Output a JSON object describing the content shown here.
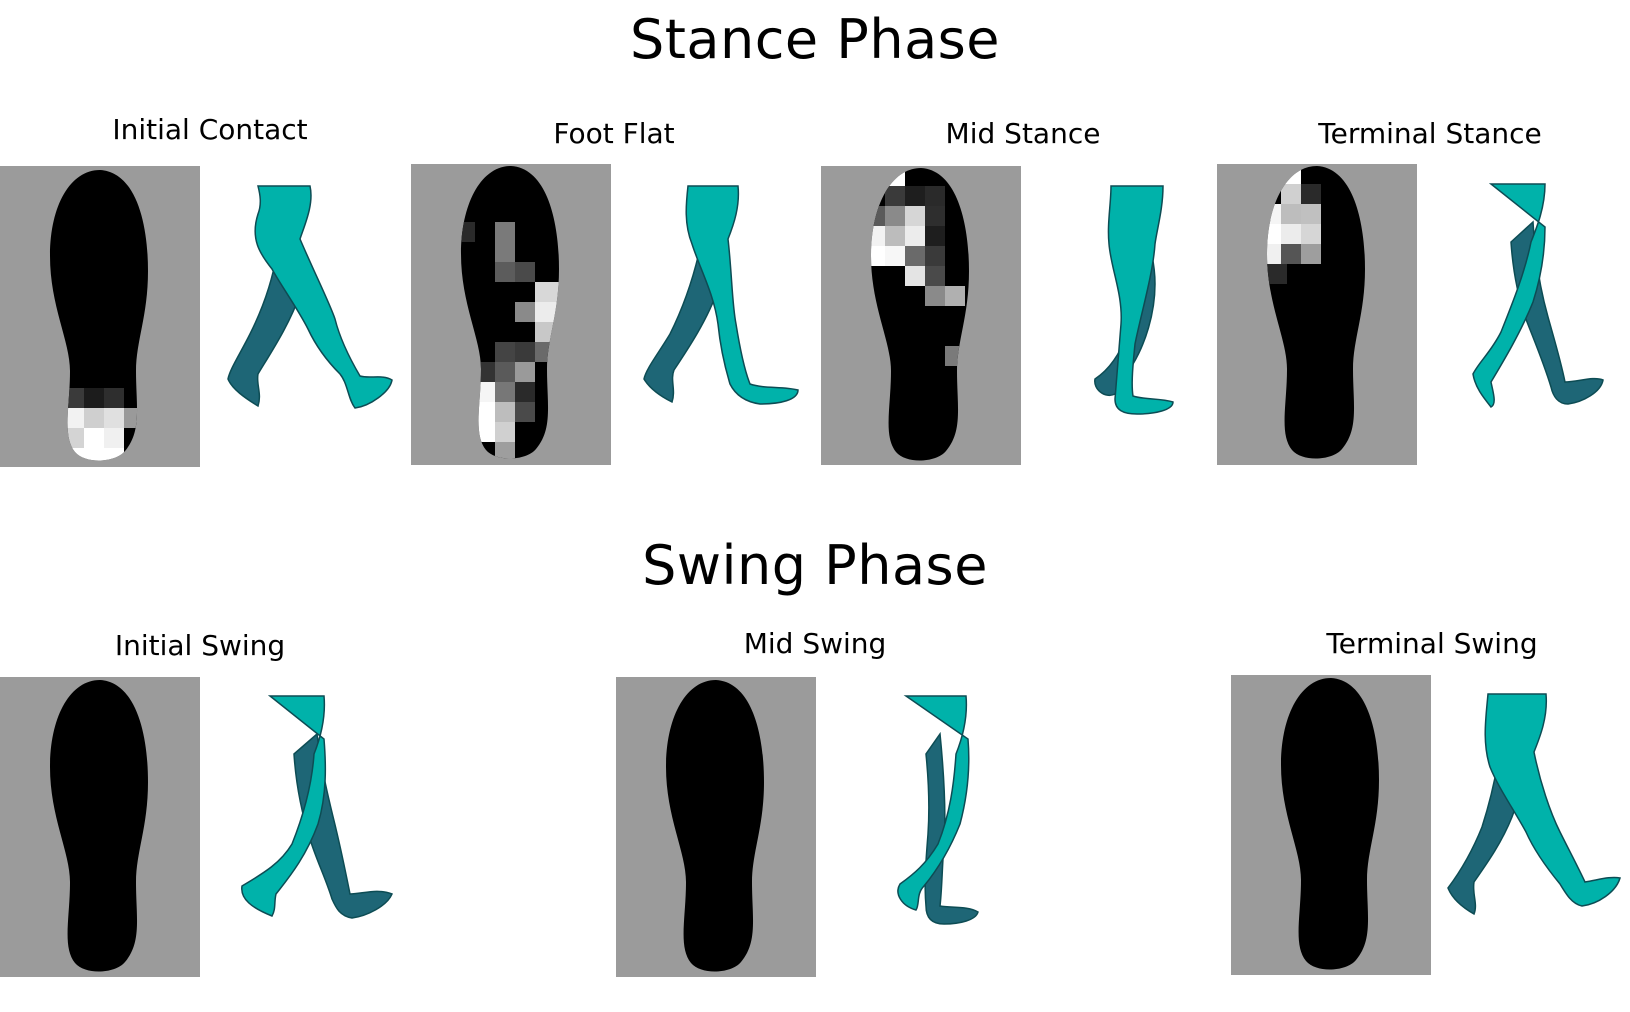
{
  "stance": {
    "title": "Stance Phase",
    "phases": [
      {
        "label": "Initial Contact",
        "pressure_region": "heel"
      },
      {
        "label": "Foot Flat",
        "pressure_region": "heel-and-lateral-midfoot"
      },
      {
        "label": "Mid Stance",
        "pressure_region": "forefoot-and-lateral-midfoot"
      },
      {
        "label": "Terminal Stance",
        "pressure_region": "forefoot-toes"
      }
    ]
  },
  "swing": {
    "title": "Swing Phase",
    "phases": [
      {
        "label": "Initial Swing",
        "pressure_region": "none"
      },
      {
        "label": "Mid Swing",
        "pressure_region": "none"
      },
      {
        "label": "Terminal Swing",
        "pressure_region": "none"
      }
    ]
  },
  "colors": {
    "insole_background": "#9b9b9b",
    "insole_foot": "#000000",
    "leg_front": "#00b2aa",
    "leg_back": "#1e6676",
    "leg_outline": "#0d4c54"
  }
}
